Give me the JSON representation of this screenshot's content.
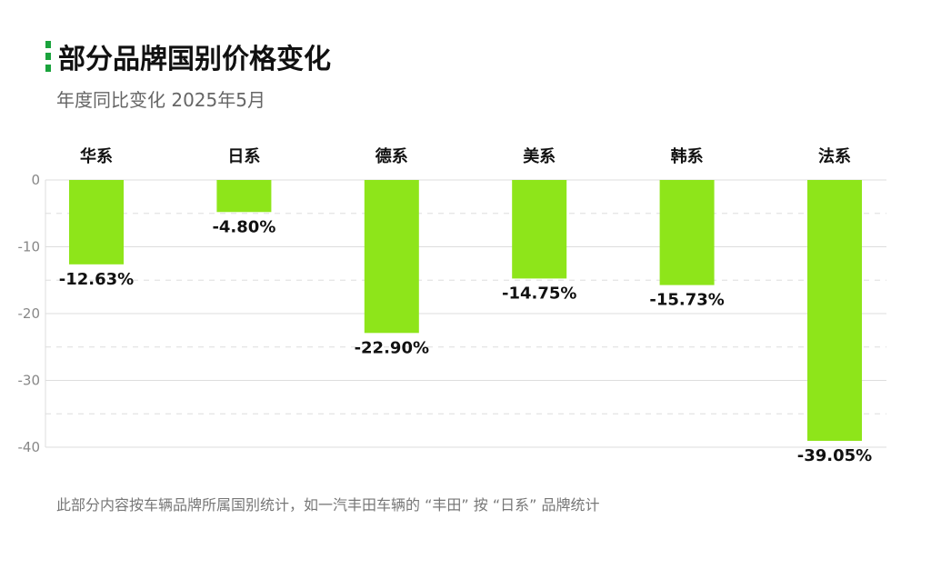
{
  "header": {
    "title": "部分品牌国别价格变化",
    "subtitle": "年度同比变化 2025年5月"
  },
  "footnote": "此部分内容按车辆品牌所属国别统计，如一汽丰田车辆的 “丰田” 按 “日系” 品牌统计",
  "colors": {
    "bar": "#8ee51a",
    "accent": "#1aa33c",
    "grid": "#dddddd"
  },
  "chart_data": {
    "type": "bar",
    "categories": [
      "华系",
      "日系",
      "德系",
      "美系",
      "韩系",
      "法系"
    ],
    "values": [
      -12.63,
      -4.8,
      -22.9,
      -14.75,
      -15.73,
      -39.05
    ],
    "value_labels": [
      "-12.63%",
      "-4.80%",
      "-22.90%",
      "-14.75%",
      "-15.73%",
      "-39.05%"
    ],
    "title": "部分品牌国别价格变化",
    "subtitle": "年度同比变化 2025年5月",
    "xlabel": "",
    "ylabel": "",
    "ylim": [
      -40,
      0
    ],
    "yticks": [
      0,
      -10,
      -20,
      -30,
      -40
    ],
    "grid": true,
    "category_position": "top"
  }
}
